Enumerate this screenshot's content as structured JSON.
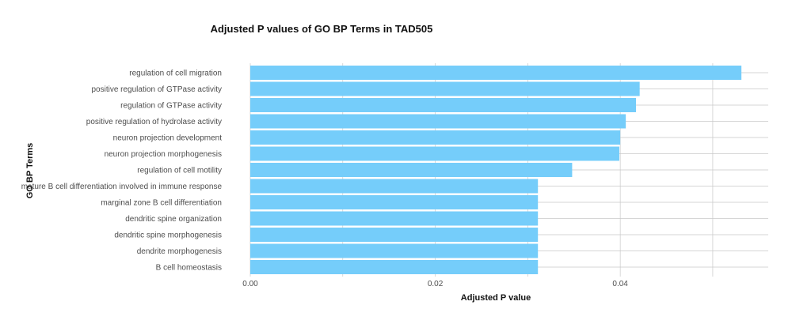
{
  "chart_data": {
    "type": "bar",
    "orientation": "horizontal",
    "title": "Adjusted P values of GO BP Terms in TAD505",
    "xlabel": "Adjusted P value",
    "ylabel": "GO BP Terms",
    "categories": [
      "regulation of cell migration",
      "positive regulation of GTPase activity",
      "regulation of GTPase activity",
      "positive regulation of hydrolase activity",
      "neuron projection development",
      "neuron projection morphogenesis",
      "regulation of cell motility",
      "mature B cell differentiation involved in immune response",
      "marginal zone B cell differentiation",
      "dendritic spine organization",
      "dendritic spine morphogenesis",
      "dendrite morphogenesis",
      "B cell homeostasis"
    ],
    "values": [
      0.0531,
      0.0421,
      0.0417,
      0.0406,
      0.04,
      0.0399,
      0.0348,
      0.0311,
      0.0311,
      0.0311,
      0.0311,
      0.0311,
      0.0311
    ],
    "xlim": [
      0,
      0.056
    ],
    "xticks": [
      0.0,
      0.02,
      0.04
    ],
    "xtick_labels": [
      "0.00",
      "0.02",
      "0.04"
    ],
    "grid": true,
    "bar_color": "#75cdfa",
    "grid_color": "#c8c8c8"
  }
}
